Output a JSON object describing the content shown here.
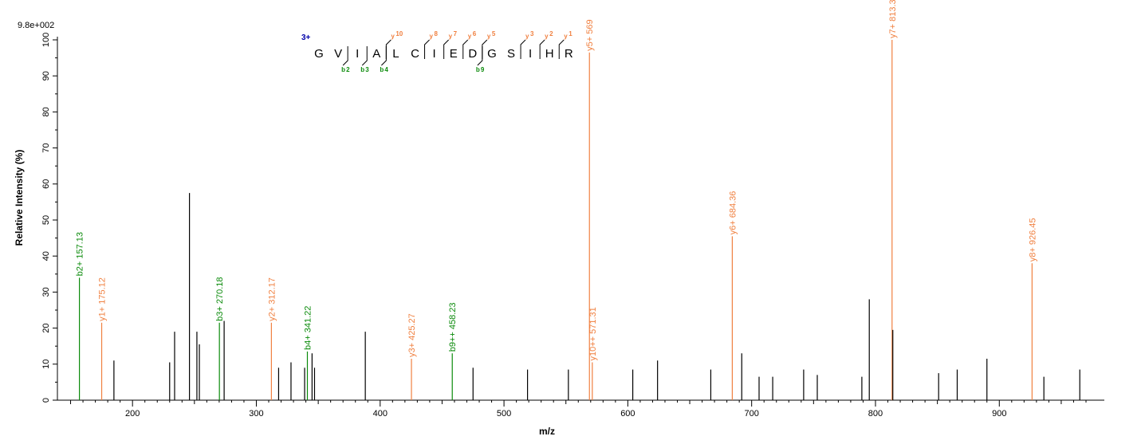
{
  "chart_data": {
    "type": "bar",
    "max_intensity_label": "9.8e+002",
    "xlabel": "m/z",
    "ylabel": "Relative   Intensity (%)",
    "xlim": [
      140,
      980
    ],
    "ylim": [
      0,
      100
    ],
    "x_ticks": [
      200,
      300,
      400,
      500,
      600,
      700,
      800,
      900
    ],
    "y_ticks": [
      0,
      10,
      20,
      30,
      40,
      50,
      60,
      70,
      80,
      90,
      100
    ],
    "colors": {
      "unassigned": "#000000",
      "b_ion": "#0a8a0a",
      "y_ion": "#f08040"
    },
    "peaks": [
      {
        "mz": 157.13,
        "intensity": 34,
        "type": "b",
        "label": "b2+ 157.13"
      },
      {
        "mz": 175.12,
        "intensity": 21.5,
        "type": "y",
        "label": "y1+ 175.12"
      },
      {
        "mz": 185,
        "intensity": 11,
        "type": "none"
      },
      {
        "mz": 230,
        "intensity": 10.5,
        "type": "none"
      },
      {
        "mz": 234,
        "intensity": 19,
        "type": "none"
      },
      {
        "mz": 246,
        "intensity": 57.5,
        "type": "none"
      },
      {
        "mz": 252,
        "intensity": 19,
        "type": "none"
      },
      {
        "mz": 254,
        "intensity": 15.5,
        "type": "none"
      },
      {
        "mz": 270.18,
        "intensity": 21.5,
        "type": "b",
        "label": "b3+ 270.18"
      },
      {
        "mz": 274,
        "intensity": 22,
        "type": "none"
      },
      {
        "mz": 312.17,
        "intensity": 21.5,
        "type": "y",
        "label": "y2+ 312.17"
      },
      {
        "mz": 318,
        "intensity": 9,
        "type": "none"
      },
      {
        "mz": 328,
        "intensity": 10.5,
        "type": "none"
      },
      {
        "mz": 339,
        "intensity": 9,
        "type": "none"
      },
      {
        "mz": 341.22,
        "intensity": 13.5,
        "type": "b",
        "label": "b4+ 341.22"
      },
      {
        "mz": 345,
        "intensity": 13,
        "type": "none"
      },
      {
        "mz": 347,
        "intensity": 9,
        "type": "none"
      },
      {
        "mz": 388,
        "intensity": 19,
        "type": "none"
      },
      {
        "mz": 425.27,
        "intensity": 11.5,
        "type": "y",
        "label": "y3+ 425.27"
      },
      {
        "mz": 458.23,
        "intensity": 13,
        "type": "b",
        "label": "b9++ 458.23"
      },
      {
        "mz": 475,
        "intensity": 9,
        "type": "none"
      },
      {
        "mz": 519,
        "intensity": 8.5,
        "type": "none"
      },
      {
        "mz": 552,
        "intensity": 8.5,
        "type": "none"
      },
      {
        "mz": 569,
        "intensity": 96.5,
        "type": "y",
        "label": "y5+ 569"
      },
      {
        "mz": 571.31,
        "intensity": 10.5,
        "type": "y",
        "label": "y10++ 571.31"
      },
      {
        "mz": 604,
        "intensity": 8.5,
        "type": "none"
      },
      {
        "mz": 624,
        "intensity": 11,
        "type": "none"
      },
      {
        "mz": 667,
        "intensity": 8.5,
        "type": "none"
      },
      {
        "mz": 684.36,
        "intensity": 45.5,
        "type": "y",
        "label": "y6+ 684.36"
      },
      {
        "mz": 692,
        "intensity": 13,
        "type": "none"
      },
      {
        "mz": 706,
        "intensity": 6.5,
        "type": "none"
      },
      {
        "mz": 717,
        "intensity": 6.5,
        "type": "none"
      },
      {
        "mz": 742,
        "intensity": 8.5,
        "type": "none"
      },
      {
        "mz": 753,
        "intensity": 7,
        "type": "none"
      },
      {
        "mz": 789,
        "intensity": 6.5,
        "type": "none"
      },
      {
        "mz": 795,
        "intensity": 28,
        "type": "none"
      },
      {
        "mz": 813.39,
        "intensity": 100,
        "type": "y",
        "label": "y7+ 813.39"
      },
      {
        "mz": 814,
        "intensity": 19.5,
        "type": "none"
      },
      {
        "mz": 851,
        "intensity": 7.5,
        "type": "none"
      },
      {
        "mz": 866,
        "intensity": 8.5,
        "type": "none"
      },
      {
        "mz": 890,
        "intensity": 11.5,
        "type": "none"
      },
      {
        "mz": 926.45,
        "intensity": 38,
        "type": "y",
        "label": "y8+ 926.45"
      },
      {
        "mz": 936,
        "intensity": 6.5,
        "type": "none"
      },
      {
        "mz": 965,
        "intensity": 8.5,
        "type": "none"
      }
    ]
  },
  "sequence": {
    "charge": "3+",
    "residues": [
      "G",
      "V",
      "I",
      "A",
      "L",
      "C",
      "I",
      "E",
      "D",
      "G",
      "S",
      "I",
      "H",
      "R"
    ],
    "y_fragments": [
      {
        "ion": "y",
        "num": "10",
        "after": 3
      },
      {
        "ion": "y",
        "num": "8",
        "after": 5
      },
      {
        "ion": "y",
        "num": "7",
        "after": 6
      },
      {
        "ion": "y",
        "num": "6",
        "after": 7
      },
      {
        "ion": "y",
        "num": "5",
        "after": 8
      },
      {
        "ion": "y",
        "num": "3",
        "after": 10
      },
      {
        "ion": "y",
        "num": "2",
        "after": 11
      },
      {
        "ion": "y",
        "num": "1",
        "after": 12
      }
    ],
    "b_fragments": [
      {
        "ion": "b",
        "num": "2",
        "after": 1
      },
      {
        "ion": "b",
        "num": "3",
        "after": 2
      },
      {
        "ion": "b",
        "num": "4",
        "after": 3
      },
      {
        "ion": "b",
        "num": "9",
        "after": 8
      }
    ]
  }
}
